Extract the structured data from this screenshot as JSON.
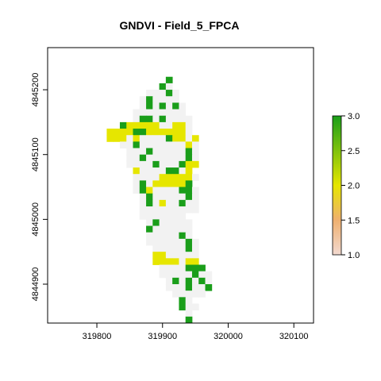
{
  "chart_data": {
    "type": "heatmap",
    "title": "GNDVI - Field_5_FPCA",
    "xlim": [
      319725,
      320130
    ],
    "ylim": [
      4844840,
      4845265
    ],
    "x_ticks": [
      319800,
      319900,
      320000,
      320100
    ],
    "y_ticks": [
      4844900,
      4845000,
      4845100,
      4845200
    ],
    "x_tick_labels": [
      "319800",
      "319900",
      "320000",
      "320100"
    ],
    "y_tick_labels": [
      "4844900",
      "4845000",
      "4845100",
      "4845200"
    ],
    "grid_origin": [
      319815,
      4844840
    ],
    "cell_size": 10,
    "value_range": [
      1.0,
      3.0
    ],
    "colorbar_ticks": [
      1.0,
      1.5,
      2.0,
      2.5,
      3.0
    ],
    "colorbar_tick_labels": [
      "1.0",
      "1.5",
      "2.0",
      "2.5",
      "3.0"
    ],
    "colors": {
      "class_1": "#f2f2f2",
      "class_2": "#e6e600",
      "class_3": "#1a9e1a",
      "colorbar_low": "#f2d9d0",
      "colorbar_mid_low": "#efb06f",
      "colorbar_mid": "#e6e600",
      "colorbar_high": "#1a9e1a"
    },
    "grid": [
      ".........g......",
      "........gc......",
      "......cccgc.....",
      ".....cgcccc.....",
      ".....cgcgcgc....",
      "....cccccccc....",
      "....cggcgcccc...",
      "..gyyyyyccyyc...",
      "yyyyggyyyyyyc...",
      "yyycyccccgyycy..",
      "..ccgcccccccyc..",
      "...cccgcccccgc..",
      "...ccgccccccgc..",
      "...ccccgcccgyy..",
      "....yccccggcy...",
      "....ccccyyyyyc..",
      "....cgcyyyyyg...",
      "....cgyccccggc..",
      ".....cgcccccgc..",
      ".....cgcyccgcc..",
      ".....ccccccccc..",
      ".....ccccccc....",
      "......cgccccc...",
      "......gcccccc...",
      "......cccccgc...",
      "......ccccccgc..",
      ".......cccccgc..",
      ".......yyccccc..",
      ".......yyyycyy..",
      "........ccccggg.",
      "........cccccgcc",
      ".........cgcgcgc",
      ".........cccgccg",
      "..........ccccc.",
      "...........gc...",
      "...........gcc..",
      "............c...",
      "............g..."
    ]
  }
}
